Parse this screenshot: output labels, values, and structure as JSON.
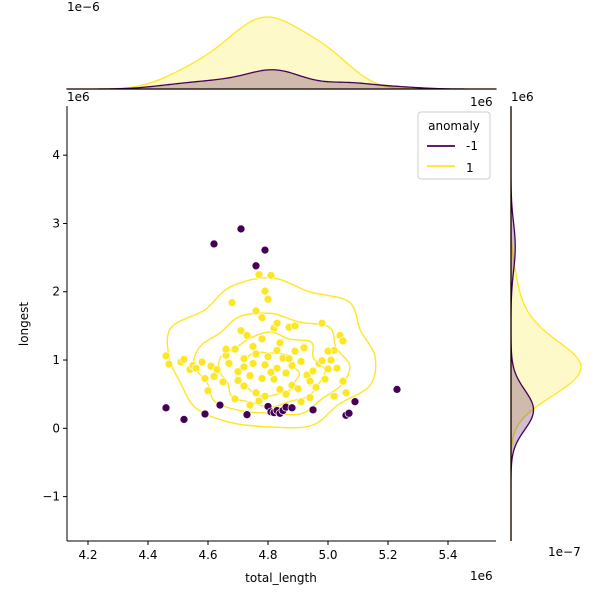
{
  "chart_data": {
    "type": "scatter",
    "xlabel": "total_length",
    "ylabel": "longest",
    "x_offset_label": "1e6",
    "y_offset_label": "1e6",
    "top_marginal_offset_label": "1e−6",
    "top_marginal_right_label": "1e6",
    "right_marginal_top_label": "1e6",
    "right_marginal_offset_label": "1e−7",
    "xlim": [
      4.13,
      5.56
    ],
    "ylim": [
      -1.65,
      4.72
    ],
    "xticks": [
      4.2,
      4.4,
      4.6,
      4.8,
      5.0,
      5.2,
      5.4
    ],
    "yticks": [
      -1,
      0,
      1,
      2,
      3,
      4
    ],
    "tick_labels_x": [
      "4.2",
      "4.4",
      "4.6",
      "4.8",
      "5.0",
      "5.2",
      "5.4"
    ],
    "tick_labels_y": [
      "−1",
      "0",
      "1",
      "2",
      "3",
      "4"
    ],
    "legend": {
      "title": "anomaly",
      "placement": "top-right",
      "entries": [
        {
          "label": "-1",
          "color": "#440154"
        },
        {
          "label": "1",
          "color": "#fde725"
        }
      ]
    },
    "colors": {
      "anomaly_neg": "#440154",
      "anomaly_pos": "#fde725"
    },
    "series": [
      {
        "name": "-1",
        "color": "#440154",
        "points": [
          [
            4.62,
            2.7
          ],
          [
            4.71,
            2.92
          ],
          [
            4.79,
            2.61
          ],
          [
            4.76,
            2.38
          ],
          [
            5.23,
            0.57
          ],
          [
            4.46,
            0.3
          ],
          [
            4.52,
            0.13
          ],
          [
            4.59,
            0.21
          ],
          [
            4.64,
            0.34
          ],
          [
            4.73,
            0.2
          ],
          [
            4.8,
            0.32
          ],
          [
            4.81,
            0.24
          ],
          [
            4.82,
            0.23
          ],
          [
            4.83,
            0.26
          ],
          [
            4.84,
            0.22
          ],
          [
            4.85,
            0.26
          ],
          [
            4.86,
            0.31
          ],
          [
            4.88,
            0.3
          ],
          [
            4.95,
            0.27
          ],
          [
            5.06,
            0.19
          ],
          [
            5.07,
            0.22
          ],
          [
            5.09,
            0.39
          ]
        ]
      },
      {
        "name": "1",
        "color": "#fde725",
        "points": [
          [
            4.46,
            1.06
          ],
          [
            4.47,
            0.94
          ],
          [
            4.51,
            0.97
          ],
          [
            4.52,
            1.01
          ],
          [
            4.54,
            0.86
          ],
          [
            4.55,
            0.92
          ],
          [
            4.56,
            0.88
          ],
          [
            4.58,
            0.97
          ],
          [
            4.59,
            0.73
          ],
          [
            4.6,
            0.55
          ],
          [
            4.61,
            0.91
          ],
          [
            4.63,
            0.86
          ],
          [
            4.65,
            0.68
          ],
          [
            4.66,
            1.07
          ],
          [
            4.67,
            0.95
          ],
          [
            4.68,
            1.84
          ],
          [
            4.69,
            1.16
          ],
          [
            4.7,
            0.83
          ],
          [
            4.71,
            1.43
          ],
          [
            4.72,
            1.02
          ],
          [
            4.73,
            1.36
          ],
          [
            4.74,
            0.77
          ],
          [
            4.75,
            1.2
          ],
          [
            4.76,
            1.09
          ],
          [
            4.77,
            2.25
          ],
          [
            4.78,
            1.62
          ],
          [
            4.79,
            0.93
          ],
          [
            4.8,
            1.89
          ],
          [
            4.81,
            2.24
          ],
          [
            4.82,
            1.47
          ],
          [
            4.83,
            0.88
          ],
          [
            4.84,
            1.25
          ],
          [
            4.85,
            1.03
          ],
          [
            4.86,
            0.81
          ],
          [
            4.87,
            1.48
          ],
          [
            4.88,
            0.63
          ],
          [
            4.89,
            1.13
          ],
          [
            4.9,
            0.58
          ],
          [
            4.91,
            0.98
          ],
          [
            4.92,
            1.18
          ],
          [
            4.93,
            0.78
          ],
          [
            4.94,
            0.45
          ],
          [
            4.95,
            0.84
          ],
          [
            4.96,
            0.6
          ],
          [
            4.97,
            0.95
          ],
          [
            4.98,
            1.54
          ],
          [
            4.99,
            0.72
          ],
          [
            5.0,
            0.87
          ],
          [
            5.01,
            1.0
          ],
          [
            5.02,
            1.14
          ],
          [
            5.03,
            0.88
          ],
          [
            5.04,
            1.36
          ],
          [
            5.05,
            0.69
          ],
          [
            5.05,
            1.28
          ],
          [
            5.06,
            0.52
          ],
          [
            4.69,
            0.43
          ],
          [
            4.72,
            0.62
          ],
          [
            4.76,
            0.52
          ],
          [
            4.79,
            0.47
          ],
          [
            4.82,
            0.72
          ],
          [
            4.84,
            0.57
          ],
          [
            4.86,
            0.5
          ],
          [
            4.88,
            0.92
          ],
          [
            4.72,
            0.9
          ],
          [
            4.75,
            0.95
          ],
          [
            4.78,
            0.73
          ],
          [
            4.8,
            1.05
          ],
          [
            4.83,
            1.14
          ],
          [
            4.77,
            0.4
          ],
          [
            4.74,
            0.34
          ],
          [
            4.7,
            0.7
          ],
          [
            4.78,
            1.31
          ],
          [
            4.81,
            0.82
          ],
          [
            4.87,
            1.02
          ],
          [
            4.89,
            1.5
          ],
          [
            4.76,
            1.72
          ],
          [
            4.79,
            2.01
          ],
          [
            4.83,
            1.54
          ],
          [
            4.66,
            1.16
          ],
          [
            4.62,
            0.76
          ],
          [
            4.98,
            0.99
          ],
          [
            5.0,
            1.13
          ],
          [
            5.02,
            0.47
          ],
          [
            4.94,
            0.69
          ],
          [
            4.91,
            0.39
          ]
        ]
      }
    ]
  }
}
